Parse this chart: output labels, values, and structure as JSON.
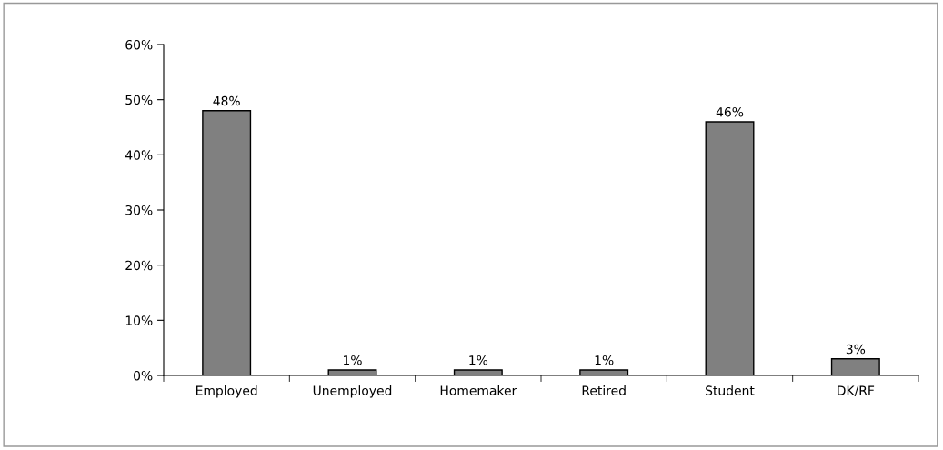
{
  "chart_data": {
    "type": "bar",
    "categories": [
      "Employed",
      "Unemployed",
      "Homemaker",
      "Retired",
      "Student",
      "DK/RF"
    ],
    "values": [
      48,
      1,
      1,
      1,
      46,
      3
    ],
    "value_labels": [
      "48%",
      "1%",
      "1%",
      "1%",
      "46%",
      "3%"
    ],
    "color": "#808080",
    "ylim": [
      0,
      60
    ],
    "yticks": [
      {
        "value": 0,
        "label": "0%"
      },
      {
        "value": 10,
        "label": "10%"
      },
      {
        "value": 20,
        "label": "20%"
      },
      {
        "value": 30,
        "label": "30%"
      },
      {
        "value": 40,
        "label": "40%"
      },
      {
        "value": 50,
        "label": "50%"
      },
      {
        "value": 60,
        "label": "60%"
      }
    ],
    "grid": false,
    "legend": false
  }
}
